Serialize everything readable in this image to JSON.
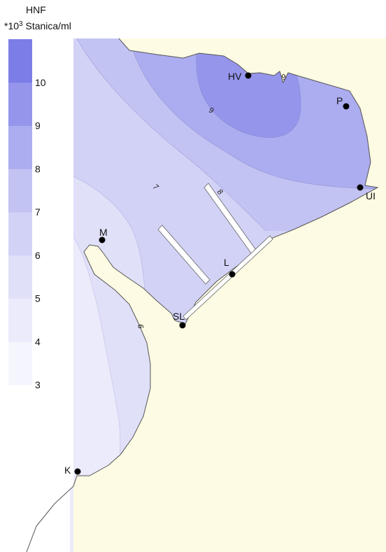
{
  "legend": {
    "title_line1": "HNF",
    "title_line2_prefix": "*10",
    "title_line2_exp": "3",
    "title_line2_suffix": " Stanica/ml",
    "levels": [
      {
        "label": "3",
        "color": "#f5f5fd"
      },
      {
        "label": "4",
        "color": "#ebebfb"
      },
      {
        "label": "5",
        "color": "#e0e0f9"
      },
      {
        "label": "6",
        "color": "#d2d2f6"
      },
      {
        "label": "7",
        "color": "#c3c3f3"
      },
      {
        "label": "8",
        "color": "#acacf0"
      },
      {
        "label": "9",
        "color": "#9595ec"
      },
      {
        "label": "10",
        "color": "#7d7de8"
      }
    ]
  },
  "contour_labels": [
    "9",
    "9",
    "8",
    "7",
    "6"
  ],
  "stations": [
    {
      "id": "HV",
      "label": "HV"
    },
    {
      "id": "P",
      "label": "P"
    },
    {
      "id": "UI",
      "label": "UI"
    },
    {
      "id": "M",
      "label": "M"
    },
    {
      "id": "L",
      "label": "L"
    },
    {
      "id": "SL",
      "label": "SL"
    },
    {
      "id": "K",
      "label": "K"
    }
  ],
  "colors": {
    "land": "#fdfbe3",
    "coast": "#555555",
    "pier": "#ffffff"
  }
}
